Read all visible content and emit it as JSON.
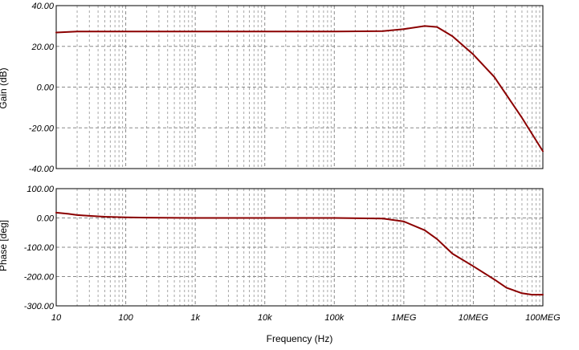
{
  "chart_data": [
    {
      "type": "line",
      "ylabel": "Gain (dB)",
      "xscale": "log",
      "xlim": [
        10,
        100000000
      ],
      "ylim": [
        -40,
        40
      ],
      "yticks": [
        "40.00",
        "20.00",
        "0.00",
        "-20.00",
        "-40.00"
      ],
      "grid": true,
      "series": [
        {
          "color": "#8b0000",
          "x": [
            10,
            20,
            50,
            100,
            1000,
            10000,
            100000,
            500000,
            1000000,
            2000000,
            3000000,
            5000000,
            10000000,
            20000000,
            50000000,
            100000000
          ],
          "y": [
            26.8,
            27.3,
            27.3,
            27.3,
            27.3,
            27.3,
            27.3,
            27.5,
            28.5,
            30.0,
            29.5,
            25.0,
            16.0,
            5.0,
            -15.0,
            -31.5
          ]
        }
      ]
    },
    {
      "type": "line",
      "xlabel": "Frequency (Hz)",
      "ylabel": "Phase [deg]",
      "xscale": "log",
      "xlim": [
        10,
        100000000
      ],
      "ylim": [
        -300,
        100
      ],
      "yticks": [
        "100.00",
        "0.00",
        "-100.00",
        "-200.00",
        "-300.00"
      ],
      "xticks": [
        "10",
        "100",
        "1k",
        "10k",
        "100k",
        "1MEG",
        "10MEG",
        "100MEG"
      ],
      "grid": true,
      "series": [
        {
          "color": "#8b0000",
          "x": [
            10,
            15,
            20,
            30,
            50,
            100,
            200,
            1000,
            10000,
            100000,
            500000,
            1000000,
            2000000,
            3000000,
            5000000,
            10000000,
            20000000,
            30000000,
            50000000,
            70000000,
            100000000
          ],
          "y": [
            18,
            14,
            10,
            7,
            4,
            2,
            1,
            0,
            0,
            0,
            -2,
            -12,
            -42,
            -72,
            -122,
            -165,
            -210,
            -238,
            -257,
            -262,
            -262
          ]
        }
      ]
    }
  ]
}
